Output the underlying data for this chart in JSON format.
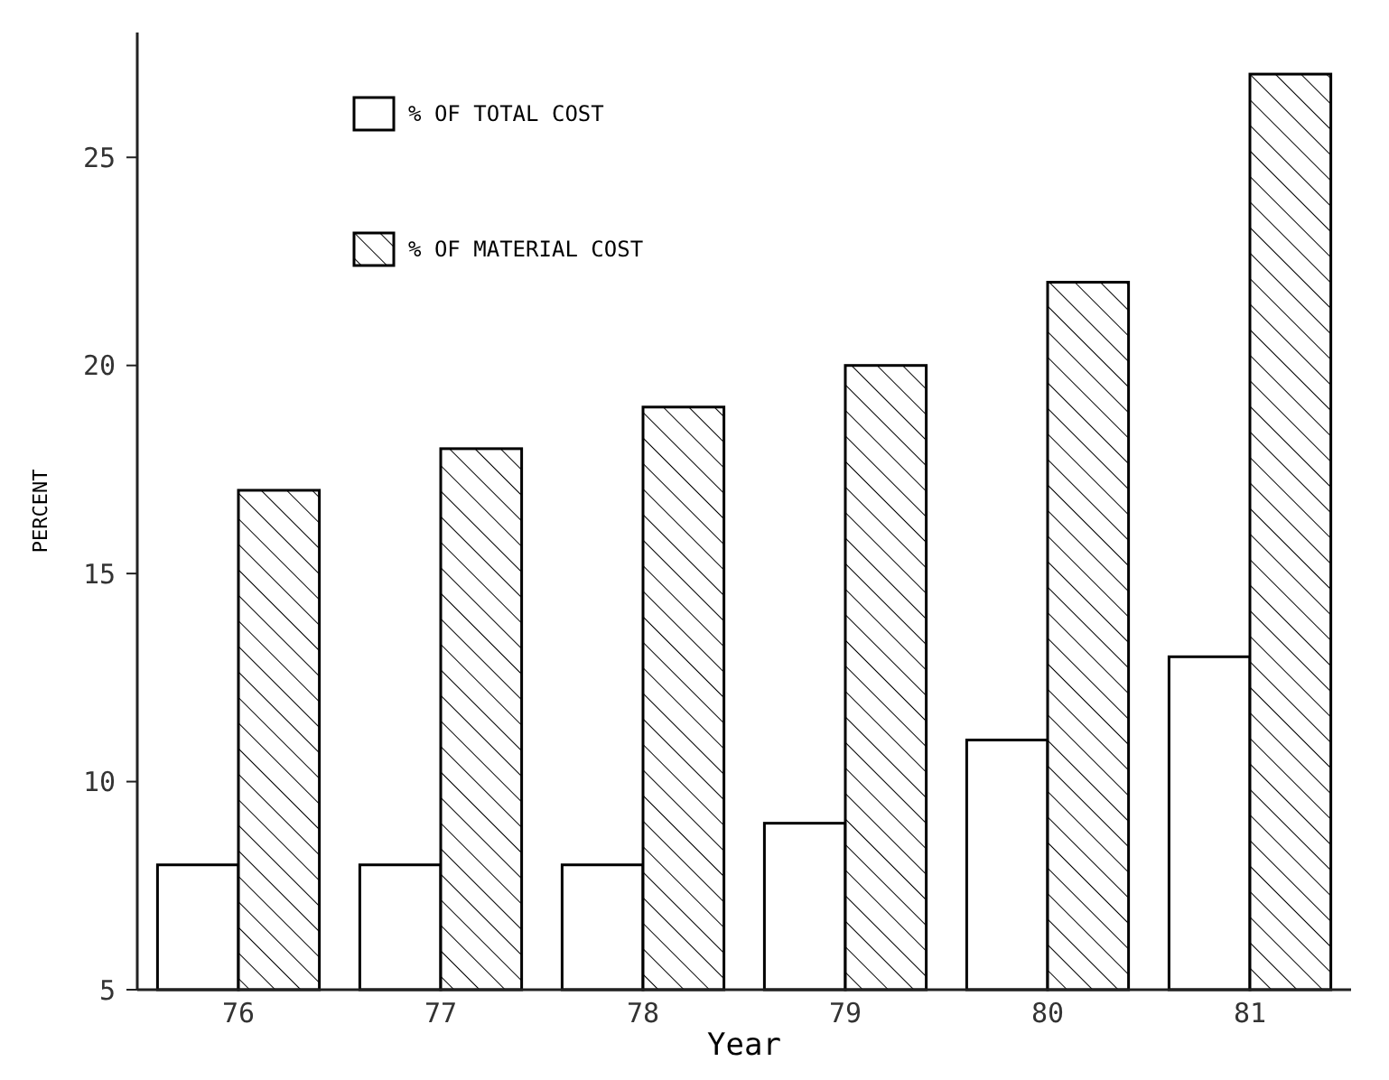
{
  "chart_data": {
    "type": "bar",
    "xlabel": "Year",
    "ylabel": "PERCENT",
    "categories": [
      "76",
      "77",
      "78",
      "79",
      "80",
      "81"
    ],
    "series": [
      {
        "name": "% OF TOTAL COST",
        "color": "#ffffff",
        "values": [
          8,
          8,
          8,
          9,
          11,
          13
        ]
      },
      {
        "name": "% OF MATERIAL COST",
        "color": "#000000",
        "values": [
          17,
          18,
          19,
          20,
          22,
          27
        ]
      }
    ],
    "ylim": [
      5,
      28
    ],
    "yticks": [
      5,
      10,
      15,
      20,
      25
    ],
    "legend": "top left",
    "grid": false
  }
}
